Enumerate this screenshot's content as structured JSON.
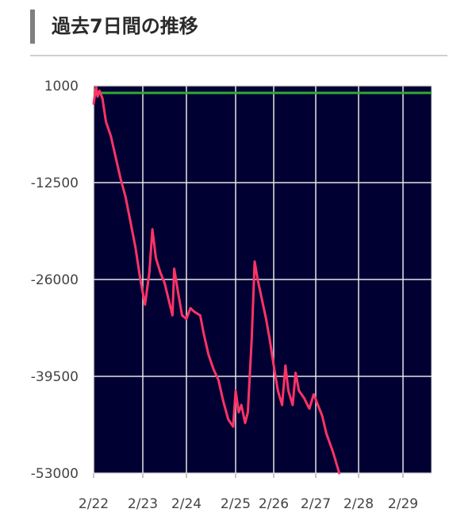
{
  "header": {
    "title": "過去7日間の推移"
  },
  "chart_data": {
    "type": "line",
    "title": "過去7日間の推移",
    "xlabel": "",
    "ylabel": "",
    "ylim": [
      -53000,
      1000
    ],
    "y_ticks": [
      1000,
      -12500,
      -26000,
      -39500,
      -53000
    ],
    "y_tick_labels": [
      "1000",
      "-12500",
      "-26000",
      "-39500",
      "-53000"
    ],
    "x_tick_labels": [
      "2/22",
      "2/23",
      "2/24",
      "2/25",
      "2/26",
      "2/27",
      "2/28",
      "2/29"
    ],
    "x_range": [
      0,
      7.6
    ],
    "grid": true,
    "background_color": "#000033",
    "grid_color": "#e6e6e6",
    "reference_line": {
      "value": 0,
      "color": "#33aa33"
    },
    "series": [
      {
        "color": "#ff3366",
        "points": [
          [
            0.0,
            -1500
          ],
          [
            0.05,
            800
          ],
          [
            0.08,
            -500
          ],
          [
            0.12,
            300
          ],
          [
            0.18,
            -800
          ],
          [
            0.25,
            -4000
          ],
          [
            0.35,
            -6000
          ],
          [
            0.45,
            -9000
          ],
          [
            0.55,
            -12000
          ],
          [
            0.65,
            -14500
          ],
          [
            0.75,
            -18000
          ],
          [
            0.85,
            -21500
          ],
          [
            0.95,
            -26000
          ],
          [
            1.05,
            -29500
          ],
          [
            1.15,
            -25000
          ],
          [
            1.22,
            -19000
          ],
          [
            1.3,
            -23000
          ],
          [
            1.4,
            -25000
          ],
          [
            1.5,
            -26500
          ],
          [
            1.58,
            -28500
          ],
          [
            1.68,
            -31000
          ],
          [
            1.72,
            -24500
          ],
          [
            1.8,
            -27500
          ],
          [
            1.9,
            -31000
          ],
          [
            2.0,
            -31500
          ],
          [
            2.08,
            -30000
          ],
          [
            2.16,
            -30500
          ],
          [
            2.28,
            -31000
          ],
          [
            2.35,
            -33500
          ],
          [
            2.45,
            -36500
          ],
          [
            2.55,
            -38500
          ],
          [
            2.65,
            -40000
          ],
          [
            2.75,
            -43000
          ],
          [
            2.85,
            -45500
          ],
          [
            2.95,
            -46500
          ],
          [
            3.0,
            -41500
          ],
          [
            3.08,
            -44500
          ],
          [
            3.15,
            -43500
          ],
          [
            3.25,
            -46000
          ],
          [
            3.32,
            -44500
          ],
          [
            3.42,
            -34500
          ],
          [
            3.5,
            -23500
          ],
          [
            3.58,
            -26000
          ],
          [
            3.68,
            -28500
          ],
          [
            3.8,
            -31500
          ],
          [
            3.9,
            -34500
          ],
          [
            4.0,
            -38000
          ],
          [
            4.1,
            -41500
          ],
          [
            4.2,
            -43500
          ],
          [
            4.28,
            -38000
          ],
          [
            4.35,
            -41500
          ],
          [
            4.45,
            -43500
          ],
          [
            4.52,
            -39000
          ],
          [
            4.6,
            -41500
          ],
          [
            4.72,
            -42500
          ],
          [
            4.85,
            -44000
          ],
          [
            4.95,
            -42000
          ],
          [
            5.05,
            -43500
          ],
          [
            5.15,
            -45000
          ],
          [
            5.25,
            -47500
          ],
          [
            5.4,
            -50000
          ],
          [
            5.55,
            -53000
          ]
        ]
      }
    ]
  }
}
